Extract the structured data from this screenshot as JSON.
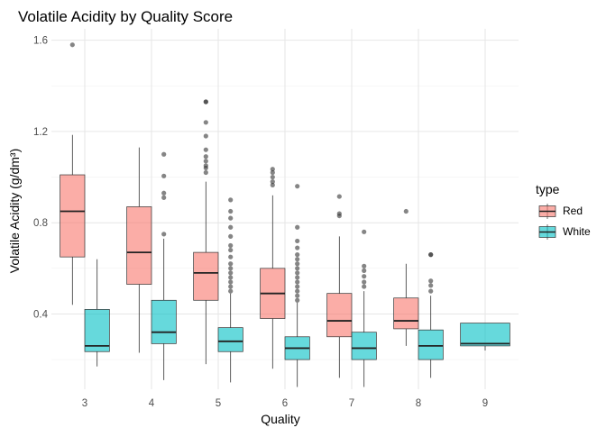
{
  "chart_data": {
    "type": "boxplot",
    "title": "Volatile Acidity by Quality Score",
    "xlabel": "Quality",
    "ylabel": "Volatile Acidity (g/dm³)",
    "categories": [
      "3",
      "4",
      "5",
      "6",
      "7",
      "8",
      "9"
    ],
    "y_ticks": [
      "0.4",
      "0.8",
      "1.2",
      "1.6"
    ],
    "ylim": [
      0.07,
      1.65
    ],
    "grid": true,
    "legend": {
      "title": "type",
      "position": "right"
    },
    "series": [
      {
        "name": "Red",
        "color": "#F8766D",
        "boxes": [
          {
            "category": "3",
            "whisker_low": 0.44,
            "q1": 0.65,
            "median": 0.85,
            "q3": 1.01,
            "whisker_high": 1.185,
            "outliers": [
              1.58
            ]
          },
          {
            "category": "4",
            "whisker_low": 0.23,
            "q1": 0.53,
            "median": 0.67,
            "q3": 0.87,
            "whisker_high": 1.13,
            "outliers": []
          },
          {
            "category": "5",
            "whisker_low": 0.18,
            "q1": 0.46,
            "median": 0.58,
            "q3": 0.67,
            "whisker_high": 0.98,
            "outliers": [
              1.02,
              1.04,
              1.05,
              1.07,
              1.09,
              1.12,
              1.18,
              1.24,
              1.33,
              1.33
            ]
          },
          {
            "category": "6",
            "whisker_low": 0.16,
            "q1": 0.38,
            "median": 0.49,
            "q3": 0.6,
            "whisker_high": 0.92,
            "outliers": [
              0.965,
              0.98,
              1.0,
              1.02,
              1.035
            ]
          },
          {
            "category": "7",
            "whisker_low": 0.12,
            "q1": 0.3,
            "median": 0.37,
            "q3": 0.49,
            "whisker_high": 0.74,
            "outliers": [
              0.83,
              0.84,
              0.915
            ]
          },
          {
            "category": "8",
            "whisker_low": 0.26,
            "q1": 0.335,
            "median": 0.37,
            "q3": 0.47,
            "whisker_high": 0.62,
            "outliers": [
              0.85
            ]
          }
        ]
      },
      {
        "name": "White",
        "color": "#00BFC4",
        "boxes": [
          {
            "category": "3",
            "whisker_low": 0.17,
            "q1": 0.235,
            "median": 0.26,
            "q3": 0.42,
            "whisker_high": 0.64,
            "outliers": []
          },
          {
            "category": "4",
            "whisker_low": 0.11,
            "q1": 0.27,
            "median": 0.32,
            "q3": 0.46,
            "whisker_high": 0.73,
            "outliers": [
              0.75,
              0.91,
              0.93,
              1.005,
              1.1
            ]
          },
          {
            "category": "5",
            "whisker_low": 0.1,
            "q1": 0.235,
            "median": 0.28,
            "q3": 0.34,
            "whisker_high": 0.49,
            "outliers": [
              0.5,
              0.52,
              0.54,
              0.56,
              0.58,
              0.6,
              0.62,
              0.65,
              0.68,
              0.7,
              0.74,
              0.78,
              0.82,
              0.85,
              0.9
            ]
          },
          {
            "category": "6",
            "whisker_low": 0.08,
            "q1": 0.2,
            "median": 0.25,
            "q3": 0.3,
            "whisker_high": 0.45,
            "outliers": [
              0.46,
              0.48,
              0.5,
              0.52,
              0.54,
              0.56,
              0.58,
              0.6,
              0.62,
              0.64,
              0.66,
              0.69,
              0.72,
              0.78,
              0.96
            ]
          },
          {
            "category": "7",
            "whisker_low": 0.08,
            "q1": 0.2,
            "median": 0.25,
            "q3": 0.32,
            "whisker_high": 0.5,
            "outliers": [
              0.52,
              0.54,
              0.565,
              0.59,
              0.61,
              0.76
            ]
          },
          {
            "category": "8",
            "whisker_low": 0.12,
            "q1": 0.2,
            "median": 0.26,
            "q3": 0.33,
            "whisker_high": 0.48,
            "outliers": [
              0.5,
              0.525,
              0.545,
              0.66,
              0.66
            ]
          },
          {
            "category": "9",
            "whisker_low": 0.24,
            "q1": 0.26,
            "median": 0.27,
            "q3": 0.36,
            "whisker_high": 0.36,
            "outliers": []
          }
        ]
      }
    ]
  }
}
